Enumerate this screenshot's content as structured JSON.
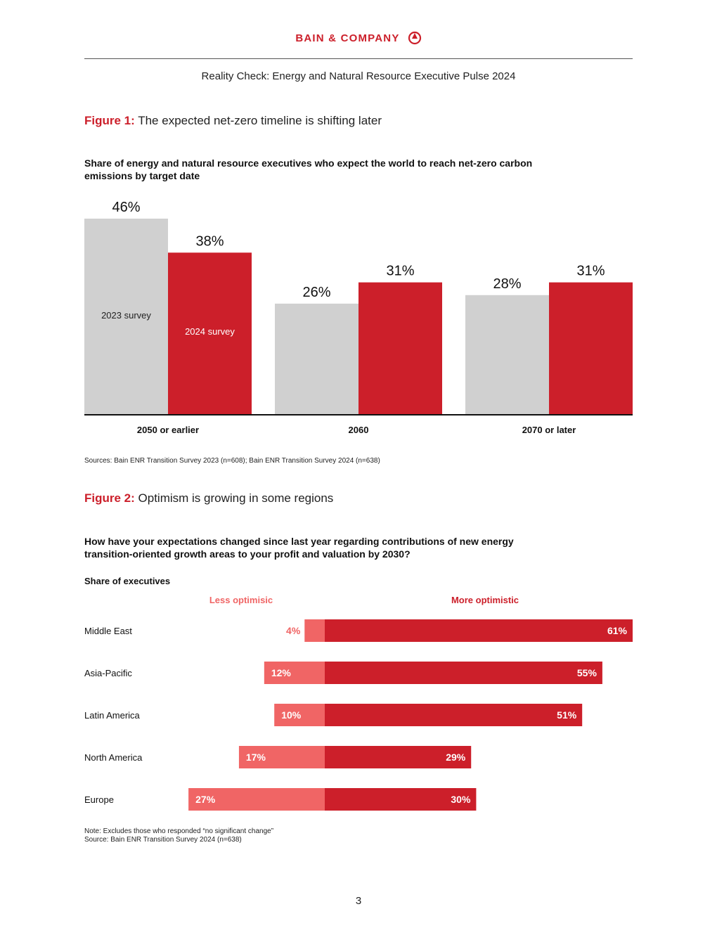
{
  "header": {
    "brand": "BAIN & COMPANY",
    "document_title": "Reality Check: Energy and Natural Resource Executive Pulse 2024"
  },
  "figure1": {
    "label": "Figure 1:",
    "title": "The expected net-zero timeline is shifting later",
    "subtitle": "Share of energy and natural resource executives who expect the world to reach net-zero carbon emissions by target date",
    "source": "Sources: Bain ENR Transition Survey 2023 (n=608); Bain ENR Transition Survey 2024 (n=638)"
  },
  "figure2": {
    "label": "Figure 2:",
    "title": "Optimism is growing in some regions",
    "subtitle": "How have your expectations changed since last year regarding contributions of new energy transition-oriented growth areas to your profit and valuation by 2030?",
    "note": "Note: Excludes those who responded “no significant change”",
    "source": "Source: Bain ENR Transition Survey 2024 (n=638)"
  },
  "page_number": "3",
  "colors": {
    "brand_red": "#cc1f2a",
    "gray_bar": "#d0d0d0",
    "light_red": "#f06565"
  },
  "chart_data": [
    {
      "type": "bar",
      "categories": [
        "2050 or earlier",
        "2060",
        "2070 or later"
      ],
      "series": [
        {
          "name": "2023 survey",
          "values": [
            46,
            26,
            28
          ],
          "color": "#d0d0d0"
        },
        {
          "name": "2024 survey",
          "values": [
            38,
            31,
            31
          ],
          "color": "#cc1f2a"
        }
      ],
      "value_format": "{v}%",
      "ylim": [
        0,
        46
      ],
      "grid": false,
      "legend": "inside bars"
    },
    {
      "type": "bar",
      "orientation": "horizontal-diverging",
      "axis_title": "Share of executives",
      "categories": [
        "Middle East",
        "Asia-Pacific",
        "Latin America",
        "North America",
        "Europe"
      ],
      "series": [
        {
          "name": "Less optimisic",
          "values": [
            4,
            12,
            10,
            17,
            27
          ],
          "color": "#f06565"
        },
        {
          "name": "More optimistic",
          "values": [
            61,
            55,
            51,
            29,
            30
          ],
          "color": "#cc1f2a"
        }
      ],
      "value_format": "{v}%",
      "xlim": [
        -27,
        61
      ],
      "grid": false
    }
  ]
}
